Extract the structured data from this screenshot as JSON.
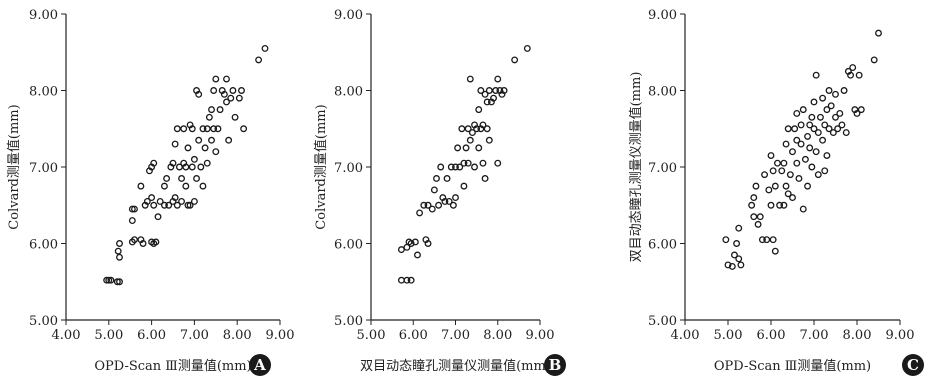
{
  "chart_data": [
    {
      "type": "scatter",
      "panel_letter": "A",
      "xlabel": "OPD-Scan Ⅲ测量值(mm)",
      "ylabel": "Colvard测量值(mm)",
      "xlim": [
        4.0,
        9.0
      ],
      "ylim": [
        5.0,
        9.0
      ],
      "xticks": [
        "4.00",
        "5.00",
        "6.00",
        "7.00",
        "8.00",
        "9.00"
      ],
      "yticks": [
        "5.00",
        "6.00",
        "7.00",
        "8.00",
        "9.00"
      ],
      "points": [
        [
          4.95,
          5.52
        ],
        [
          5.0,
          5.52
        ],
        [
          5.05,
          5.52
        ],
        [
          5.2,
          5.5
        ],
        [
          5.25,
          5.5
        ],
        [
          5.22,
          5.9
        ],
        [
          5.25,
          6.0
        ],
        [
          5.25,
          5.82
        ],
        [
          5.55,
          6.45
        ],
        [
          5.6,
          6.45
        ],
        [
          5.55,
          6.3
        ],
        [
          5.6,
          6.05
        ],
        [
          5.55,
          6.02
        ],
        [
          5.75,
          6.05
        ],
        [
          5.8,
          6.0
        ],
        [
          5.75,
          6.75
        ],
        [
          5.85,
          6.5
        ],
        [
          5.9,
          6.55
        ],
        [
          5.95,
          6.95
        ],
        [
          6.0,
          7.0
        ],
        [
          6.05,
          7.05
        ],
        [
          6.0,
          6.6
        ],
        [
          6.05,
          6.5
        ],
        [
          6.0,
          6.02
        ],
        [
          6.05,
          6.0
        ],
        [
          6.1,
          6.02
        ],
        [
          6.15,
          6.35
        ],
        [
          6.2,
          6.55
        ],
        [
          6.3,
          6.5
        ],
        [
          6.3,
          6.75
        ],
        [
          6.35,
          6.85
        ],
        [
          6.4,
          6.5
        ],
        [
          6.45,
          7.0
        ],
        [
          6.5,
          7.05
        ],
        [
          6.5,
          6.55
        ],
        [
          6.55,
          6.6
        ],
        [
          6.55,
          7.3
        ],
        [
          6.6,
          7.5
        ],
        [
          6.6,
          6.5
        ],
        [
          6.65,
          7.0
        ],
        [
          6.7,
          6.85
        ],
        [
          6.7,
          6.55
        ],
        [
          6.75,
          7.05
        ],
        [
          6.75,
          7.5
        ],
        [
          6.8,
          7.0
        ],
        [
          6.8,
          6.75
        ],
        [
          6.85,
          6.5
        ],
        [
          6.85,
          7.25
        ],
        [
          6.9,
          7.55
        ],
        [
          6.9,
          6.5
        ],
        [
          6.95,
          7.0
        ],
        [
          6.95,
          7.5
        ],
        [
          7.0,
          7.1
        ],
        [
          7.0,
          6.55
        ],
        [
          7.05,
          6.85
        ],
        [
          7.05,
          8.0
        ],
        [
          7.1,
          7.95
        ],
        [
          7.1,
          7.35
        ],
        [
          7.15,
          7.0
        ],
        [
          7.2,
          7.5
        ],
        [
          7.2,
          6.75
        ],
        [
          7.25,
          7.25
        ],
        [
          7.3,
          7.5
        ],
        [
          7.3,
          7.05
        ],
        [
          7.35,
          7.65
        ],
        [
          7.4,
          7.75
        ],
        [
          7.4,
          7.35
        ],
        [
          7.45,
          7.5
        ],
        [
          7.45,
          8.0
        ],
        [
          7.5,
          8.15
        ],
        [
          7.5,
          7.2
        ],
        [
          7.55,
          7.5
        ],
        [
          7.6,
          7.75
        ],
        [
          7.65,
          8.0
        ],
        [
          7.7,
          7.95
        ],
        [
          7.75,
          7.85
        ],
        [
          7.75,
          8.15
        ],
        [
          7.8,
          7.35
        ],
        [
          7.85,
          7.9
        ],
        [
          7.9,
          8.0
        ],
        [
          7.95,
          7.65
        ],
        [
          8.05,
          7.9
        ],
        [
          8.1,
          8.0
        ],
        [
          8.15,
          7.5
        ],
        [
          8.5,
          8.4
        ],
        [
          8.65,
          8.55
        ]
      ]
    },
    {
      "type": "scatter",
      "panel_letter": "B",
      "xlabel": "双目动态瞳孔测量仪测量值(mm)",
      "ylabel": "Colvard测量值(mm)",
      "xlim": [
        5.0,
        9.0
      ],
      "ylim": [
        5.0,
        9.0
      ],
      "xticks": [
        "5.00",
        "6.00",
        "7.00",
        "8.00",
        "9.00"
      ],
      "yticks": [
        "5.00",
        "6.00",
        "7.00",
        "8.00",
        "9.00"
      ],
      "points": [
        [
          5.72,
          5.52
        ],
        [
          5.85,
          5.52
        ],
        [
          5.95,
          5.52
        ],
        [
          5.72,
          5.92
        ],
        [
          5.85,
          5.95
        ],
        [
          5.9,
          6.02
        ],
        [
          5.95,
          6.0
        ],
        [
          6.05,
          6.02
        ],
        [
          6.1,
          5.85
        ],
        [
          6.15,
          6.4
        ],
        [
          6.25,
          6.5
        ],
        [
          6.3,
          6.05
        ],
        [
          6.35,
          6.0
        ],
        [
          6.35,
          6.5
        ],
        [
          6.45,
          6.45
        ],
        [
          6.5,
          6.7
        ],
        [
          6.55,
          6.85
        ],
        [
          6.6,
          6.5
        ],
        [
          6.65,
          7.0
        ],
        [
          6.7,
          6.6
        ],
        [
          6.75,
          6.55
        ],
        [
          6.8,
          6.85
        ],
        [
          6.85,
          6.55
        ],
        [
          6.9,
          7.0
        ],
        [
          6.95,
          6.5
        ],
        [
          7.0,
          6.6
        ],
        [
          7.0,
          7.0
        ],
        [
          7.05,
          7.25
        ],
        [
          7.1,
          7.0
        ],
        [
          7.15,
          7.5
        ],
        [
          7.2,
          7.05
        ],
        [
          7.2,
          6.75
        ],
        [
          7.25,
          7.25
        ],
        [
          7.3,
          7.5
        ],
        [
          7.3,
          7.05
        ],
        [
          7.35,
          8.15
        ],
        [
          7.35,
          7.35
        ],
        [
          7.4,
          7.45
        ],
        [
          7.45,
          7.0
        ],
        [
          7.45,
          7.55
        ],
        [
          7.5,
          7.5
        ],
        [
          7.55,
          7.25
        ],
        [
          7.55,
          7.75
        ],
        [
          7.6,
          8.0
        ],
        [
          7.6,
          7.5
        ],
        [
          7.65,
          7.05
        ],
        [
          7.65,
          7.55
        ],
        [
          7.7,
          7.95
        ],
        [
          7.7,
          6.85
        ],
        [
          7.75,
          7.5
        ],
        [
          7.75,
          7.85
        ],
        [
          7.8,
          8.0
        ],
        [
          7.8,
          7.35
        ],
        [
          7.85,
          7.85
        ],
        [
          7.9,
          7.9
        ],
        [
          7.95,
          8.0
        ],
        [
          8.0,
          8.15
        ],
        [
          8.05,
          8.0
        ],
        [
          8.1,
          7.95
        ],
        [
          8.15,
          8.0
        ],
        [
          8.4,
          8.4
        ],
        [
          8.7,
          8.55
        ],
        [
          8.0,
          7.05
        ]
      ]
    },
    {
      "type": "scatter",
      "panel_letter": "C",
      "xlabel": "OPD-Scan Ⅲ测量值(mm)",
      "ylabel": "双目动态瞳孔测量仪测量值(mm)",
      "xlim": [
        4.0,
        9.0
      ],
      "ylim": [
        5.0,
        9.0
      ],
      "xticks": [
        "4.00",
        "5.00",
        "6.00",
        "7.00",
        "8.00",
        "9.00"
      ],
      "yticks": [
        "5.00",
        "6.00",
        "7.00",
        "8.00",
        "9.00"
      ],
      "points": [
        [
          4.95,
          6.05
        ],
        [
          5.0,
          5.72
        ],
        [
          5.1,
          5.7
        ],
        [
          5.15,
          5.85
        ],
        [
          5.2,
          6.0
        ],
        [
          5.25,
          5.8
        ],
        [
          5.25,
          6.2
        ],
        [
          5.3,
          5.72
        ],
        [
          5.55,
          6.5
        ],
        [
          5.6,
          6.6
        ],
        [
          5.6,
          6.35
        ],
        [
          5.65,
          6.75
        ],
        [
          5.7,
          6.25
        ],
        [
          5.75,
          6.35
        ],
        [
          5.8,
          6.05
        ],
        [
          5.85,
          6.9
        ],
        [
          5.9,
          6.05
        ],
        [
          5.95,
          6.7
        ],
        [
          6.0,
          6.5
        ],
        [
          6.0,
          7.15
        ],
        [
          6.05,
          6.95
        ],
        [
          6.05,
          6.05
        ],
        [
          6.1,
          5.9
        ],
        [
          6.1,
          6.75
        ],
        [
          6.15,
          7.05
        ],
        [
          6.2,
          6.5
        ],
        [
          6.25,
          6.95
        ],
        [
          6.3,
          7.05
        ],
        [
          6.3,
          6.5
        ],
        [
          6.35,
          7.3
        ],
        [
          6.35,
          6.75
        ],
        [
          6.4,
          7.5
        ],
        [
          6.45,
          6.9
        ],
        [
          6.5,
          7.2
        ],
        [
          6.5,
          6.6
        ],
        [
          6.55,
          7.5
        ],
        [
          6.6,
          7.7
        ],
        [
          6.6,
          7.05
        ],
        [
          6.65,
          6.85
        ],
        [
          6.7,
          7.3
        ],
        [
          6.7,
          7.55
        ],
        [
          6.75,
          6.45
        ],
        [
          6.75,
          7.75
        ],
        [
          6.8,
          7.1
        ],
        [
          6.85,
          7.4
        ],
        [
          6.85,
          6.75
        ],
        [
          6.9,
          7.55
        ],
        [
          6.9,
          7.25
        ],
        [
          6.95,
          7.0
        ],
        [
          7.0,
          7.85
        ],
        [
          7.0,
          7.5
        ],
        [
          7.05,
          7.2
        ],
        [
          7.05,
          8.2
        ],
        [
          7.1,
          7.45
        ],
        [
          7.1,
          6.9
        ],
        [
          7.15,
          7.65
        ],
        [
          7.2,
          7.35
        ],
        [
          7.2,
          7.9
        ],
        [
          7.25,
          7.55
        ],
        [
          7.3,
          7.75
        ],
        [
          7.3,
          7.15
        ],
        [
          7.35,
          8.0
        ],
        [
          7.35,
          7.5
        ],
        [
          7.4,
          7.8
        ],
        [
          7.45,
          7.45
        ],
        [
          7.5,
          7.95
        ],
        [
          7.5,
          7.65
        ],
        [
          7.55,
          7.5
        ],
        [
          7.6,
          7.7
        ],
        [
          7.65,
          7.55
        ],
        [
          7.7,
          8.0
        ],
        [
          7.75,
          7.45
        ],
        [
          7.8,
          8.25
        ],
        [
          7.85,
          8.2
        ],
        [
          7.9,
          8.3
        ],
        [
          7.95,
          7.75
        ],
        [
          8.0,
          7.7
        ],
        [
          8.05,
          8.2
        ],
        [
          8.1,
          7.75
        ],
        [
          8.4,
          8.4
        ],
        [
          8.5,
          8.75
        ],
        [
          6.4,
          6.65
        ],
        [
          6.6,
          7.35
        ],
        [
          6.95,
          7.65
        ],
        [
          7.25,
          6.95
        ]
      ]
    }
  ]
}
